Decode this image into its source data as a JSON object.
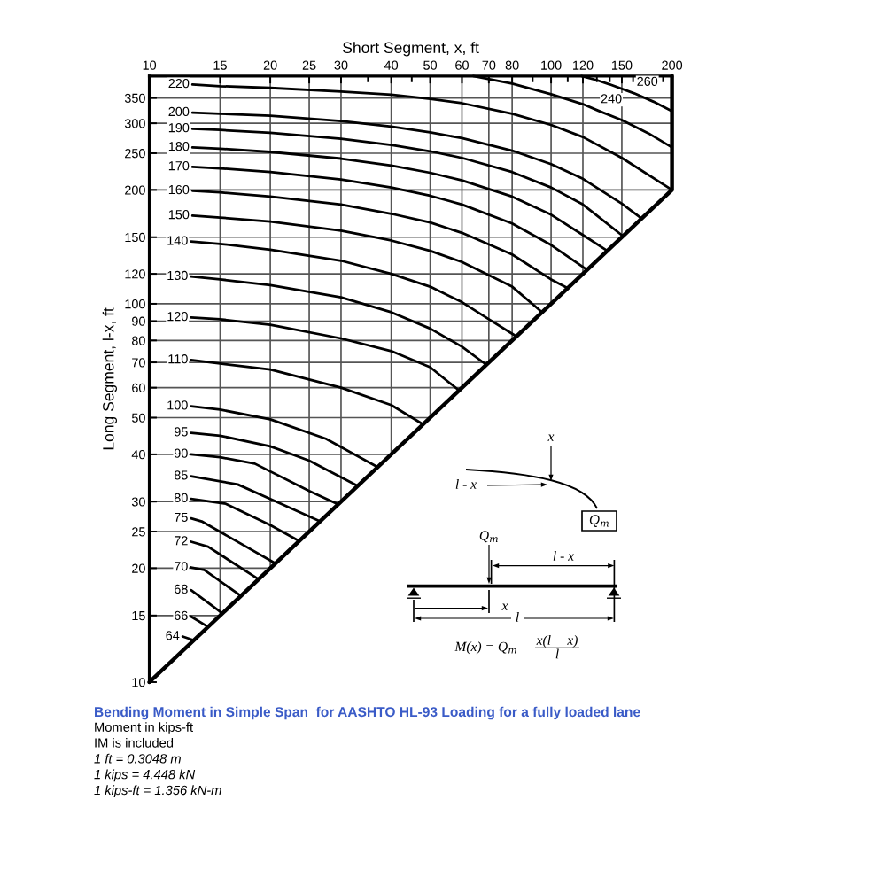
{
  "chart_data": {
    "type": "line",
    "title": "Bending Moment in Simple Span  for AASHTO HL-93 Loading for a fully loaded lane",
    "xlabel": "Short Segment, x, ft",
    "ylabel": "Long Segment, l-x, ft",
    "log": "xy",
    "xlim": [
      10,
      200
    ],
    "ylim": [
      10,
      400
    ],
    "xticks": [
      10,
      15,
      20,
      25,
      30,
      40,
      50,
      60,
      70,
      80,
      100,
      120,
      150,
      200,
      {
        "value": 35,
        "label": null
      },
      {
        "value": 45,
        "label": null
      },
      {
        "value": 90,
        "label": null
      },
      {
        "value": 110,
        "label": null
      },
      {
        "value": 130,
        "label": null
      },
      {
        "value": 140,
        "label": null
      },
      {
        "value": 160,
        "label": null
      },
      {
        "value": 170,
        "label": null
      },
      {
        "value": 180,
        "label": null
      },
      {
        "value": 190,
        "label": null
      }
    ],
    "yticks": [
      10,
      15,
      20,
      25,
      30,
      40,
      50,
      60,
      70,
      80,
      90,
      100,
      120,
      150,
      200,
      250,
      300,
      350
    ],
    "grid": true,
    "series": [
      {
        "color": "#000000",
        "x": [
          10,
          200,
          200
        ],
        "values": [
          10,
          200,
          400
        ]
      },
      {
        "name": "260",
        "color": "#000000",
        "x": [
          119,
          130,
          140,
          161,
          180,
          200
        ],
        "values": [
          400,
          390,
          380,
          360,
          342,
          323
        ]
      },
      {
        "name": "240",
        "color": "#000000",
        "x": [
          64,
          80,
          100,
          120,
          131,
          150,
          175,
          200
        ],
        "values": [
          400,
          382,
          358,
          337,
          324,
          306,
          282,
          259
        ]
      },
      {
        "name": "220",
        "color": "#000000",
        "x": [
          12.8,
          15,
          20,
          30,
          40,
          50,
          60,
          80,
          100,
          120,
          150,
          200
        ],
        "values": [
          380,
          376,
          372,
          364,
          357,
          348,
          339,
          318,
          297,
          276,
          243,
          200
        ]
      },
      {
        "name": "200",
        "color": "#000000",
        "x": [
          12.8,
          15,
          20,
          30,
          40,
          50,
          60,
          80,
          100,
          120,
          150,
          168
        ],
        "values": [
          320,
          318,
          314,
          304,
          294,
          284,
          274,
          254,
          234,
          214,
          184,
          168
        ]
      },
      {
        "name": "190",
        "color": "#000000",
        "x": [
          12.8,
          15,
          20,
          30,
          40,
          50,
          60,
          80,
          100,
          120,
          151
        ],
        "values": [
          290,
          288,
          283,
          273,
          263,
          253,
          243,
          223,
          203,
          183,
          151
        ]
      },
      {
        "name": "180",
        "color": "#000000",
        "x": [
          12.8,
          15,
          20,
          30,
          40,
          50,
          60,
          80,
          100,
          120,
          138
        ],
        "values": [
          259,
          257,
          252,
          242,
          232,
          222,
          212,
          192,
          172,
          152,
          138
        ]
      },
      {
        "name": "170",
        "color": "#000000",
        "x": [
          12.8,
          15,
          20,
          30,
          40,
          50,
          60,
          80,
          100,
          123
        ],
        "values": [
          230,
          228,
          223,
          213,
          203,
          193,
          183,
          163,
          143,
          123
        ]
      },
      {
        "name": "160",
        "color": "#000000",
        "x": [
          12.8,
          15,
          20,
          30,
          40,
          50,
          60,
          80,
          100,
          110
        ],
        "values": [
          199,
          197,
          192,
          183,
          173,
          164,
          154,
          135,
          116,
          110
        ]
      },
      {
        "name": "150",
        "color": "#000000",
        "x": [
          12.8,
          15,
          20,
          30,
          40,
          50,
          60,
          80,
          95
        ],
        "values": [
          171,
          169,
          165,
          156,
          147,
          138,
          129,
          111,
          95
        ]
      },
      {
        "name": "140",
        "color": "#000000",
        "x": [
          12.7,
          15,
          20,
          30,
          40,
          50,
          60,
          70,
          82
        ],
        "values": [
          146,
          144,
          139,
          130,
          120,
          111,
          101,
          91,
          82
        ]
      },
      {
        "name": "130",
        "color": "#000000",
        "x": [
          12.7,
          15,
          20,
          30,
          40,
          50,
          60,
          69
        ],
        "values": [
          118,
          116,
          112,
          104,
          95,
          86,
          77,
          69
        ]
      },
      {
        "name": "120",
        "color": "#000000",
        "x": [
          12.7,
          15,
          20,
          30,
          40,
          50,
          59
        ],
        "values": [
          92,
          91,
          88,
          81,
          75,
          68,
          59
        ]
      },
      {
        "name": "110",
        "color": "#000000",
        "x": [
          12.7,
          15,
          20,
          30,
          40,
          48
        ],
        "values": [
          71,
          69.5,
          67,
          60,
          54,
          48
        ]
      },
      {
        "name": "100",
        "color": "#000000",
        "x": [
          12.7,
          15,
          20,
          27.5,
          37
        ],
        "values": [
          53.6,
          52.5,
          49.5,
          44,
          37
        ]
      },
      {
        "name": "95",
        "color": "#000000",
        "x": [
          12.7,
          15,
          20,
          25,
          33
        ],
        "values": [
          45.6,
          44.8,
          42,
          38.5,
          33
        ]
      },
      {
        "name": "90",
        "color": "#000000",
        "x": [
          12.7,
          15,
          18.3,
          25,
          29.5
        ],
        "values": [
          40,
          39.3,
          37.8,
          32,
          29.5
        ]
      },
      {
        "name": "85",
        "color": "#000000",
        "x": [
          12.7,
          16.6,
          20,
          26.6
        ],
        "values": [
          35,
          33.3,
          30.5,
          26.6
        ]
      },
      {
        "name": "80",
        "color": "#000000",
        "x": [
          12.7,
          15.5,
          20,
          23.6
        ],
        "values": [
          30.5,
          29.6,
          26,
          23.6
        ]
      },
      {
        "name": "75",
        "color": "#000000",
        "x": [
          12.7,
          13.5,
          20.6
        ],
        "values": [
          27.1,
          26.6,
          20.6
        ]
      },
      {
        "name": "72",
        "color": "#000000",
        "x": [
          12.7,
          14,
          18.7
        ],
        "values": [
          23.5,
          22.8,
          18.7
        ]
      },
      {
        "name": "70",
        "color": "#000000",
        "x": [
          12.7,
          13.7,
          16.9
        ],
        "values": [
          20.1,
          19.8,
          16.9
        ]
      },
      {
        "name": "68",
        "color": "#000000",
        "x": [
          12.7,
          15.2
        ],
        "values": [
          17.5,
          15.2
        ]
      },
      {
        "name": "66",
        "color": "#000000",
        "x": [
          12.7,
          14
        ],
        "values": [
          14.9,
          14
        ]
      },
      {
        "name": "64",
        "color": "#000000",
        "x": [
          12.1,
          12.9
        ],
        "values": [
          13.2,
          12.9
        ]
      }
    ],
    "annotations": [
      "Moment in kips-ft",
      "IM is included",
      "1 ft = 0.3048 m",
      "1 kips = 4.448 kN",
      "1 kips-ft = 1.356 kN-m",
      "x",
      "l - x",
      "Q$_{m}$",
      "Q$_{m}$",
      "l - x",
      "x",
      "l",
      "M(x) = Q$_{m}$",
      "x(l − x)",
      "l"
    ]
  }
}
